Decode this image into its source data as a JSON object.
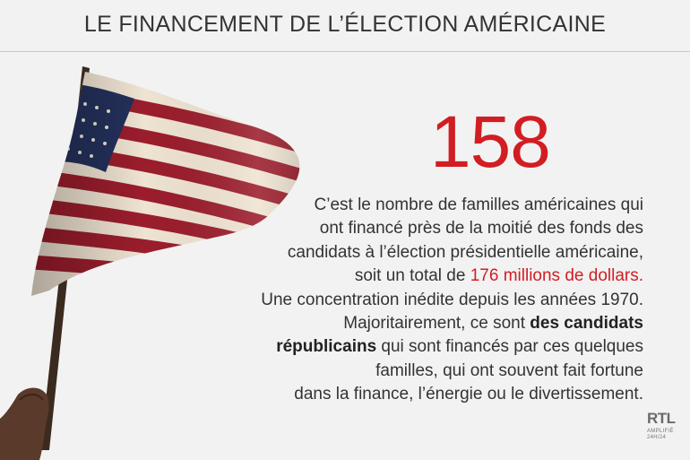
{
  "header": {
    "title": "LE FINANCEMENT DE L’ÉLECTION AMÉRICAINE"
  },
  "stat": {
    "number": "158"
  },
  "body": {
    "line1": "C’est le nombre de familles américaines qui",
    "line2": "ont financé près de la moitié des fonds des",
    "line3": "candidats à l’élection présidentielle américaine,",
    "line4_a": "soit un total de ",
    "line4_highlight": "176 millions de dollars.",
    "line5": "Une concentration inédite depuis les années 1970.",
    "line6_a": "Majoritairement, ce sont ",
    "line6_bold": "des candidats",
    "line7_bold": "républicains",
    "line7_b": " qui sont financés par ces quelques",
    "line8": "familles, qui ont souvent fait fortune",
    "line9": "dans la finance, l’énergie ou le divertissement."
  },
  "logo": {
    "name": "RTL",
    "tagline1": "AMPLIFIÉ",
    "tagline2": "24H/24"
  },
  "colors": {
    "accent": "#d21d23",
    "text": "#333333",
    "background": "#f2f2f2"
  }
}
